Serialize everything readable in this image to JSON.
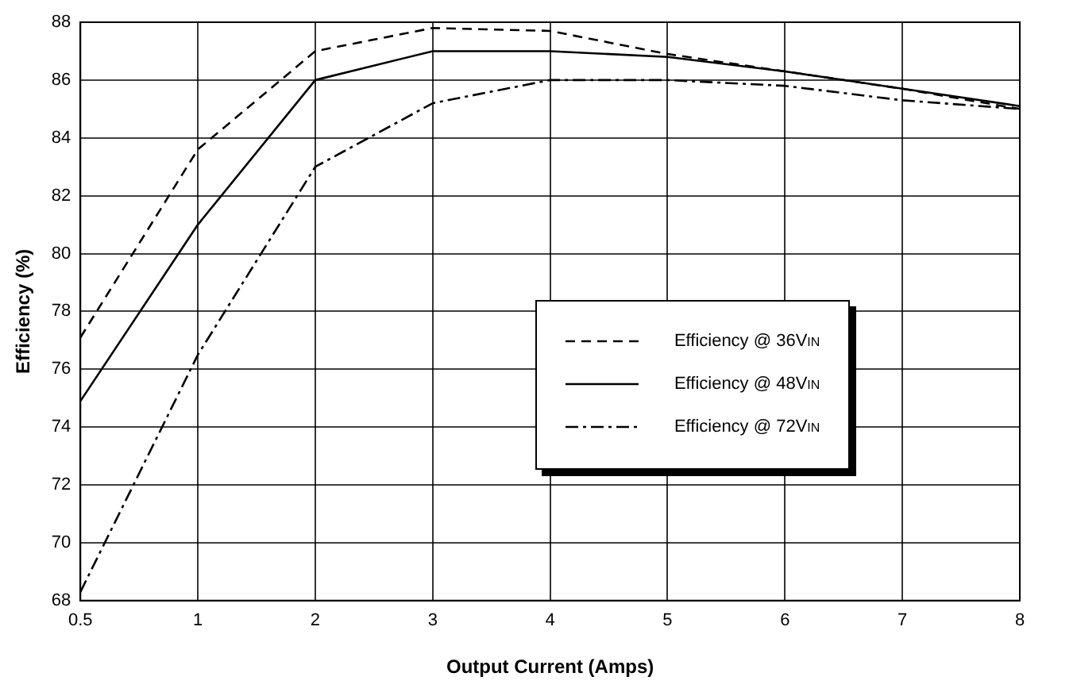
{
  "chart_data": {
    "type": "line",
    "xlabel": "Output Current (Amps)",
    "ylabel": "Efficiency (%)",
    "categories": [
      "0.5",
      "1",
      "2",
      "3",
      "4",
      "5",
      "6",
      "7",
      "8"
    ],
    "series": [
      {
        "name": "Efficiency @ 36V$_{IN}$",
        "color": "#000000",
        "line_style": "dashed",
        "values": [
          77.1,
          83.6,
          87.0,
          87.8,
          87.7,
          86.9,
          86.3,
          85.7,
          85.0
        ]
      },
      {
        "name": "Efficiency @ 48V$_{IN}$",
        "color": "#000000",
        "line_style": "solid",
        "values": [
          74.9,
          81.0,
          86.0,
          87.0,
          87.0,
          86.8,
          86.3,
          85.7,
          85.1
        ]
      },
      {
        "name": "Efficiency @ 72V$_{IN}$",
        "color": "#000000",
        "line_style": "dashdot",
        "values": [
          68.3,
          76.5,
          83.0,
          85.2,
          86.0,
          86.0,
          85.8,
          85.3,
          85.0
        ]
      }
    ],
    "ylim": [
      68,
      88
    ],
    "yticks": [
      68,
      70,
      72,
      74,
      76,
      78,
      80,
      82,
      84,
      86,
      88
    ],
    "grid": true,
    "legend": "right",
    "marker": "none"
  }
}
